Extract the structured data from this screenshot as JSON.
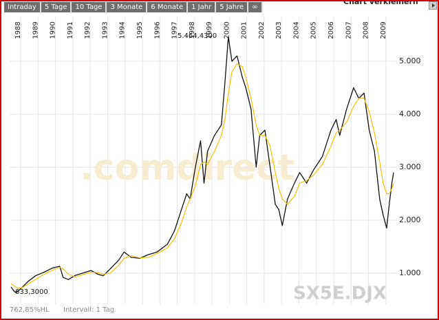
{
  "toolbar": {
    "tabs": [
      "Intraday",
      "5 Tage",
      "10 Tage",
      "3 Monate",
      "6 Monate",
      "1 Jahr",
      "5 Jahre",
      "∞"
    ],
    "toggle": "Chart verkleinern"
  },
  "chart_data": {
    "type": "line",
    "watermark": ".comdirect",
    "symbol": "SX5E.DJX",
    "annotations": [
      "5.464,4300",
      "633,3000"
    ],
    "footer": [
      "762,85%HL",
      "Intervall: 1 Tag"
    ],
    "x": [
      1987.6,
      1987.8,
      1987.9,
      1988.2,
      1988.6,
      1989.0,
      1989.5,
      1990.0,
      1990.4,
      1990.6,
      1990.9,
      1991.3,
      1991.7,
      1992.2,
      1992.6,
      1992.9,
      1993.3,
      1993.8,
      1994.1,
      1994.5,
      1995.0,
      1995.5,
      1996.0,
      1996.6,
      1997.0,
      1997.4,
      1997.7,
      1997.9,
      1998.2,
      1998.5,
      1998.7,
      1998.9,
      1999.3,
      1999.7,
      1999.9,
      2000.1,
      2000.3,
      2000.6,
      2000.9,
      2001.1,
      2001.4,
      2001.7,
      2001.9,
      2002.2,
      2002.5,
      2002.8,
      2003.0,
      2003.2,
      2003.5,
      2003.9,
      2004.2,
      2004.6,
      2005.0,
      2005.5,
      2006.0,
      2006.3,
      2006.5,
      2006.9,
      2007.3,
      2007.6,
      2007.9,
      2008.2,
      2008.5,
      2008.8,
      2009.0,
      2009.2,
      2009.35,
      2009.5,
      2009.6
    ],
    "series": [
      {
        "color": "#111111",
        "values": [
          740,
          650,
          633,
          720,
          850,
          950,
          1020,
          1100,
          1130,
          920,
          880,
          960,
          1000,
          1050,
          980,
          950,
          1080,
          1250,
          1400,
          1300,
          1280,
          1350,
          1400,
          1550,
          1800,
          2200,
          2500,
          2400,
          3000,
          3500,
          2700,
          3300,
          3600,
          3800,
          4600,
          5464,
          5000,
          5100,
          4700,
          4500,
          4100,
          3000,
          3600,
          3700,
          3000,
          2300,
          2200,
          1900,
          2400,
          2700,
          2900,
          2700,
          2950,
          3200,
          3700,
          3900,
          3600,
          4100,
          4500,
          4300,
          4400,
          3700,
          3300,
          2400,
          2100,
          1850,
          2300,
          2700,
          2900
        ]
      },
      {
        "color": "#f0c400",
        "values": [
          800,
          760,
          730,
          720,
          800,
          880,
          980,
          1060,
          1110,
          1080,
          980,
          930,
          970,
          1020,
          1010,
          980,
          1000,
          1150,
          1280,
          1330,
          1290,
          1300,
          1370,
          1480,
          1650,
          1950,
          2250,
          2400,
          2650,
          3050,
          3100,
          3050,
          3300,
          3600,
          3900,
          4400,
          4800,
          4950,
          4900,
          4700,
          4300,
          3800,
          3600,
          3600,
          3400,
          2900,
          2600,
          2400,
          2300,
          2450,
          2700,
          2750,
          2850,
          3050,
          3400,
          3650,
          3700,
          3850,
          4150,
          4300,
          4300,
          4050,
          3650,
          3100,
          2700,
          2500,
          2500,
          2600,
          2700
        ]
      }
    ],
    "xlim": [
      1987.6,
      2009.6
    ],
    "xticks": [
      1988,
      1989,
      1990,
      1991,
      1992,
      1993,
      1994,
      1995,
      1996,
      1997,
      1998,
      1999,
      2000,
      2001,
      2002,
      2003,
      2004,
      2005,
      2006,
      2007,
      2008,
      2009
    ],
    "ylim": [
      400,
      5800
    ],
    "yticks": [
      {
        "value": 1000,
        "label": "1.000"
      },
      {
        "value": 2000,
        "label": "2.000"
      },
      {
        "value": 3000,
        "label": "3.000"
      },
      {
        "value": 4000,
        "label": "4.000"
      },
      {
        "value": 5000,
        "label": "5.000"
      }
    ],
    "grid": true
  }
}
